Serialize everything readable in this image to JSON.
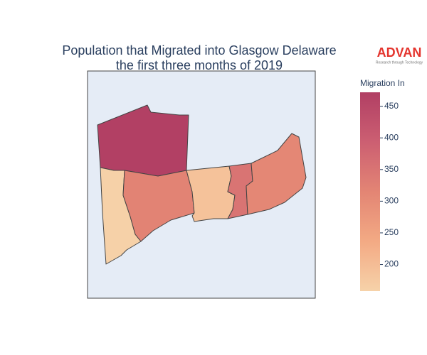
{
  "chart_data": {
    "type": "choropleth",
    "title": [
      "Population that Migrated into Glasgow Delaware",
      "the first three months of 2019"
    ],
    "logo": {
      "name": "ADVAN",
      "tagline": "Research through Technology"
    },
    "values": [
      470,
      160,
      320,
      190,
      350,
      310
    ],
    "colorbar_title": "Migration In",
    "zlim": [
      158,
      472
    ],
    "zticks": [
      200,
      250,
      300,
      350,
      400,
      450
    ],
    "colorscale": [
      "#f6d2a9",
      "#f3aa84",
      "#e38574",
      "#cc5f72",
      "#b13f64"
    ]
  }
}
